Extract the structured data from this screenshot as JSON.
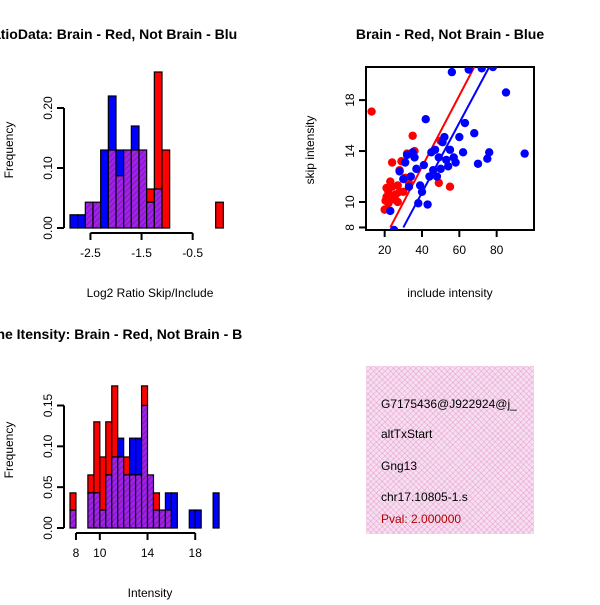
{
  "colors": {
    "red": "#ff0000",
    "blue": "#0000ff",
    "purple_fill": "#a020f0",
    "purple_hatch": "#7a1f7a",
    "pval": "#b00000"
  },
  "chart_data": [
    {
      "id": "ratio_hist",
      "type": "bar",
      "title": "RatioData: Brain - Red, Not Brain - Blu",
      "xlabel": "Log2 Ratio Skip/Include",
      "ylabel": "Frequency",
      "xlim": [
        -2.9,
        0.25
      ],
      "ylim": [
        0,
        0.26
      ],
      "xticks": [
        -2.5,
        -1.5,
        -0.5
      ],
      "xtick_labels": [
        "-2.5",
        "-1.5",
        "-0.5"
      ],
      "yticks": [
        0,
        0.1,
        0.2
      ],
      "ytick_labels": [
        "0.00",
        "0.10",
        "0.20"
      ],
      "bin_edges": [
        -2.9,
        -2.75,
        -2.6,
        -2.45,
        -2.3,
        -2.15,
        -2.0,
        -1.85,
        -1.7,
        -1.55,
        -1.4,
        -1.25,
        -1.1,
        -0.95,
        -0.8,
        -0.65,
        -0.5,
        -0.35,
        -0.2,
        -0.05,
        0.1
      ],
      "series": [
        {
          "name": "Brain",
          "color": "red",
          "values": [
            0,
            0,
            0.043,
            0.043,
            0,
            0.13,
            0.087,
            0.13,
            0.13,
            0.13,
            0.065,
            0.26,
            0.13,
            0,
            0,
            0,
            0,
            0,
            0,
            0.043
          ]
        },
        {
          "name": "Not Brain",
          "color": "blue",
          "values": [
            0.022,
            0.022,
            0.043,
            0.043,
            0.13,
            0.22,
            0.13,
            0.13,
            0.17,
            0.13,
            0.043,
            0.065,
            0,
            0,
            0,
            0,
            0,
            0,
            0,
            0
          ]
        }
      ]
    },
    {
      "id": "scatter",
      "type": "scatter",
      "title": "Brain - Red, Not Brain - Blue",
      "xlabel": "include intensity",
      "ylabel": "skip intensity",
      "xlim": [
        10,
        100
      ],
      "ylim": [
        7.8,
        20.6
      ],
      "xticks": [
        20,
        40,
        60,
        80
      ],
      "xtick_labels": [
        "20",
        "40",
        "60",
        "80"
      ],
      "yticks": [
        8,
        10,
        14,
        18
      ],
      "ytick_labels": [
        "8",
        "10",
        "14",
        "18"
      ],
      "series": [
        {
          "name": "Brain",
          "color": "red",
          "x": [
            13,
            20,
            20.5,
            21,
            21,
            22,
            22,
            23,
            23,
            24,
            24,
            25,
            26,
            27,
            27,
            28,
            28,
            29,
            30,
            31,
            32,
            33,
            35,
            36,
            49,
            50,
            55
          ],
          "y": [
            17.1,
            9.4,
            10.1,
            11.1,
            10.4,
            10.8,
            9.9,
            10.5,
            11.6,
            11.2,
            13.1,
            10.2,
            10.6,
            10.0,
            11.3,
            12.5,
            10.8,
            13.2,
            10.8,
            11.9,
            13.8,
            11.5,
            15.2,
            14.0,
            11.5,
            14.8,
            11.2
          ],
          "fit": [
            [
              23,
              8.0
            ],
            [
              68,
              20.6
            ]
          ]
        },
        {
          "name": "Not Brain",
          "color": "blue",
          "x": [
            23,
            25,
            28,
            30,
            31,
            32,
            33,
            34,
            35,
            36,
            37,
            38,
            39,
            40,
            41,
            42,
            43,
            44,
            45,
            46,
            47,
            48,
            49,
            50,
            51,
            52,
            53,
            54,
            55,
            56,
            57,
            58,
            60,
            62,
            63,
            65,
            68,
            70,
            72,
            75,
            76,
            78,
            85,
            95
          ],
          "y": [
            9.3,
            7.8,
            12.4,
            11.8,
            13.1,
            13.7,
            11.2,
            12.0,
            13.9,
            13.5,
            12.6,
            9.9,
            11.3,
            10.8,
            12.9,
            16.5,
            9.8,
            12.0,
            13.9,
            12.5,
            14.1,
            12.0,
            13.5,
            12.6,
            14.7,
            15.1,
            13.3,
            12.8,
            14.1,
            20.2,
            13.5,
            13.1,
            15.1,
            13.9,
            16.2,
            20.4,
            15.4,
            13.0,
            20.5,
            13.4,
            13.9,
            20.6,
            18.6,
            13.8
          ],
          "fit": [
            [
              30,
              8.0
            ],
            [
              76,
              20.6
            ]
          ]
        }
      ]
    },
    {
      "id": "intensity_hist",
      "type": "bar",
      "title": "Gene Itensity: Brain - Red, Not Brain - B",
      "xlabel": "Intensity",
      "ylabel": "Frequency",
      "xlim": [
        7.5,
        21
      ],
      "ylim": [
        0,
        0.18
      ],
      "xticks": [
        8,
        10,
        14,
        18
      ],
      "xtick_labels": [
        "8",
        "10",
        "14",
        "18"
      ],
      "yticks": [
        0,
        0.05,
        0.1,
        0.15
      ],
      "ytick_labels": [
        "0.00",
        "0.05",
        "0.10",
        "0.15"
      ],
      "bin_edges": [
        7.5,
        8.0,
        8.5,
        9.0,
        9.5,
        10.0,
        10.5,
        11.0,
        11.5,
        12.0,
        12.5,
        13.0,
        13.5,
        14.0,
        14.5,
        15.0,
        15.5,
        16.0,
        16.5,
        17.0,
        17.5,
        18.0,
        18.5,
        19.0,
        19.5,
        20.0,
        20.5,
        21.0
      ],
      "series": [
        {
          "name": "Brain",
          "color": "red",
          "values": [
            0.043,
            0,
            0,
            0.065,
            0.13,
            0.087,
            0.13,
            0.174,
            0.087,
            0.087,
            0.065,
            0.065,
            0.174,
            0.065,
            0.043,
            0.022,
            0.022,
            0,
            0,
            0,
            0,
            0,
            0,
            0,
            0,
            0,
            0
          ]
        },
        {
          "name": "Not Brain",
          "color": "blue",
          "values": [
            0.022,
            0,
            0,
            0.043,
            0.043,
            0.022,
            0.065,
            0.087,
            0.11,
            0.065,
            0.11,
            0.11,
            0.15,
            0.065,
            0.022,
            0.022,
            0.043,
            0.043,
            0,
            0,
            0.022,
            0.022,
            0,
            0,
            0.043,
            0,
            0
          ]
        }
      ]
    }
  ],
  "info": {
    "id": "G7175436@J922924@j_",
    "type": "altTxStart",
    "gene": "Gng13",
    "location": "chr17.10805-1.s",
    "pval": "Pval: 2.000000"
  }
}
